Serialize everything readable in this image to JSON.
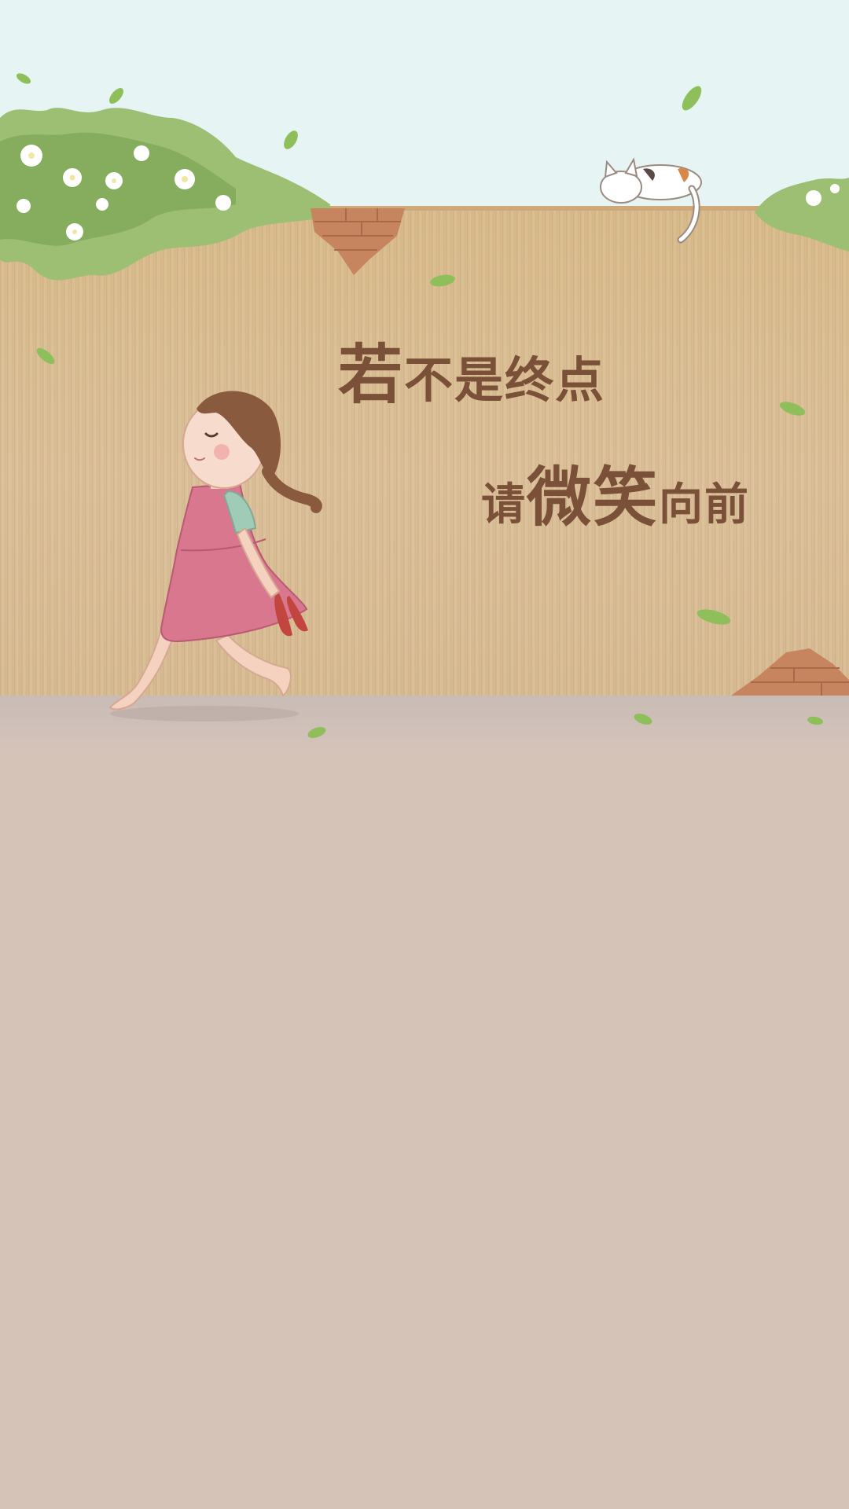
{
  "wallpaper": {
    "quote": {
      "line1": {
        "lead": "若",
        "rest": "不是终点"
      },
      "line2": {
        "lead": "请",
        "emphasis": "微笑",
        "rest": "向前"
      }
    },
    "colors": {
      "sky": "#e6f4f4",
      "wall": "#dcc099",
      "text": "#7a5138",
      "floor": "#d5c3b8",
      "dress": "#d9778f",
      "leaf": "#8fbf5a"
    },
    "illustration": {
      "figures": [
        "girl-walking-icon",
        "cat-icon",
        "flower-bush-icon",
        "brick-patch-icon",
        "leaf-icon"
      ]
    }
  }
}
